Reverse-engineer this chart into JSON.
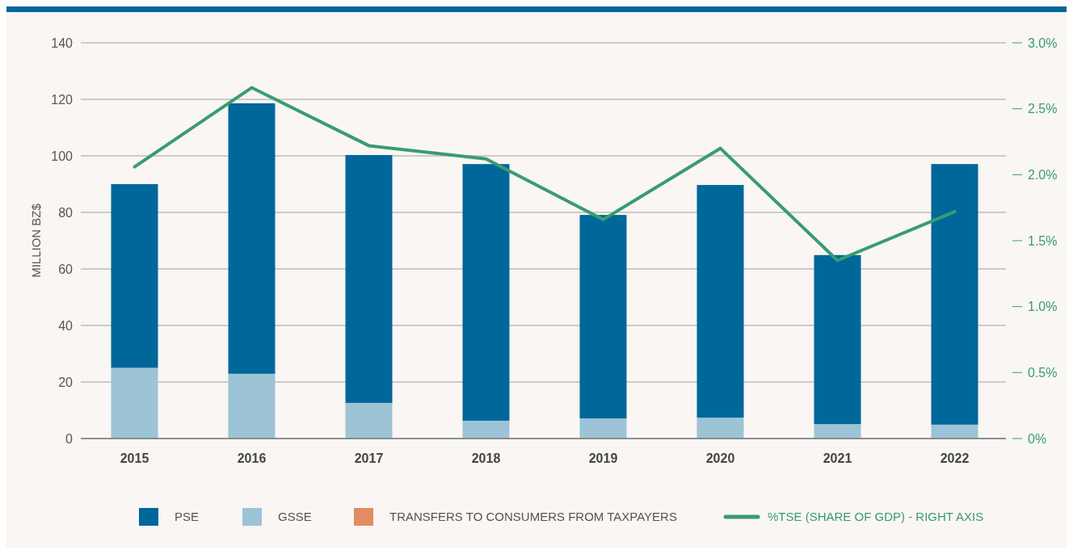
{
  "chart_data": {
    "type": "bar",
    "stacked": true,
    "ylabel": "MILLION BZ$",
    "categories": [
      "2015",
      "2016",
      "2017",
      "2018",
      "2019",
      "2020",
      "2021",
      "2022"
    ],
    "series": [
      {
        "name": "GSSE",
        "color": "#9dc3d6",
        "values": [
          25,
          22.9,
          12.6,
          6.3,
          7.1,
          7.4,
          5.1,
          4.9
        ]
      },
      {
        "name": "PSE",
        "color": "#00679a",
        "values": [
          65,
          95.7,
          87.7,
          90.8,
          72,
          82.3,
          59.8,
          92.2
        ]
      },
      {
        "name": "TRANSFERS TO CONSUMERS FROM TAXPAYERS",
        "color": "#e38b61",
        "values": [
          0,
          0,
          0,
          0,
          0,
          0,
          0,
          0
        ]
      },
      {
        "name": "%TSE (SHARE OF GDP) - RIGHT AXIS",
        "type": "line",
        "axis": "y2",
        "color": "#3a9b70",
        "values": [
          2.06,
          2.66,
          2.22,
          2.12,
          1.66,
          2.2,
          1.35,
          1.72
        ]
      }
    ],
    "ylim": [
      0,
      140
    ],
    "yticks": [
      0,
      20,
      40,
      60,
      80,
      100,
      120,
      140
    ],
    "y2lim": [
      0,
      3
    ],
    "y2ticks": [
      {
        "value": 0,
        "label": "0%"
      },
      {
        "value": 0.5,
        "label": "0.5%"
      },
      {
        "value": 1,
        "label": "1.0%"
      },
      {
        "value": 1.5,
        "label": "1.5%"
      },
      {
        "value": 2,
        "label": "2.0%"
      },
      {
        "value": 2.5,
        "label": "2.5%"
      },
      {
        "value": 3,
        "label": "3.0%"
      }
    ],
    "grid": "y",
    "legend": "bottom",
    "marker": "none",
    "line_style": "solid"
  }
}
